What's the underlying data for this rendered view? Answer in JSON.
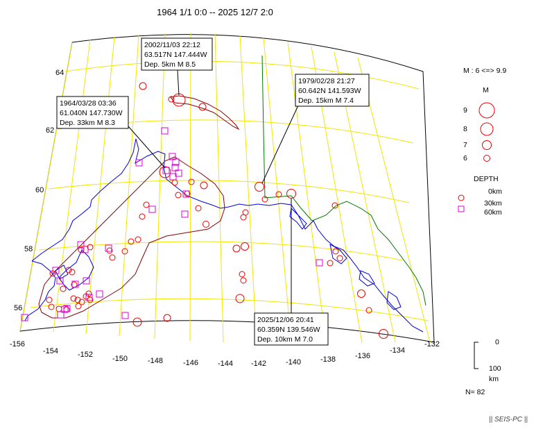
{
  "title": "1964 1/1 0:0 -- 2025 12/7 2:0",
  "lat_labels": [
    "64",
    "62",
    "60",
    "58",
    "56"
  ],
  "lon_labels": [
    "-156",
    "-154",
    "-152",
    "-150",
    "-148",
    "-146",
    "-144",
    "-142",
    "-140",
    "-138",
    "-136",
    "-134",
    "-132"
  ],
  "callouts": [
    {
      "line1": "2002/11/03 22:12",
      "line2": "63.517N  147.444W",
      "line3": "Dep. 5km    M 8.5"
    },
    {
      "line1": "1964/03/28 03:36",
      "line2": "61.040N  147.730W",
      "line3": "Dep. 33km    M 8.3"
    },
    {
      "line1": "1979/02/28 21:27",
      "line2": "60.642N  141.593W",
      "line3": "Dep. 15km    M 7.4"
    },
    {
      "line1": "2025/12/06 20:41",
      "line2": "60.359N  139.546W",
      "line3": "Dep. 10km    M 7.0"
    }
  ],
  "legend": {
    "mag_range": "M : 6 <=> 9.9",
    "mag_header": "M",
    "mag_items": [
      "9",
      "8",
      "7",
      "6"
    ],
    "depth_header": "DEPTH",
    "depth_items": [
      "0km",
      "30km",
      "60km"
    ],
    "scale_top": "0",
    "scale_bottom": "100",
    "scale_unit": "km",
    "count": "N= 82"
  },
  "credit": "|| SEIS-PC ||",
  "colors": {
    "grid": "#f2e600",
    "coast": "#0000dd",
    "border": "#007700",
    "region": "#880000",
    "shallow": "#ee0000",
    "deep": "#dd00dd"
  }
}
